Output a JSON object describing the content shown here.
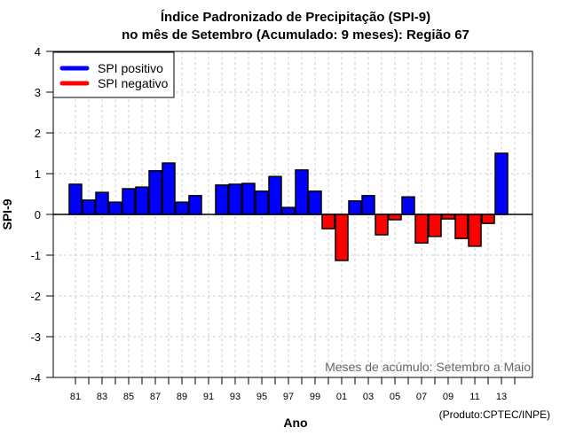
{
  "chart_data": {
    "type": "bar",
    "title_line1": "Índice Padronizado de Precipitação (SPI-9)",
    "title_line2": "no mês de Setembro (Acumulado: 9 meses): Região 67",
    "xlabel": "Ano",
    "ylabel": "SPI-9",
    "ylim": [
      -4,
      4
    ],
    "yticks": [
      "-4",
      "-3",
      "-2",
      "-1",
      "0",
      "1",
      "2",
      "3",
      "4"
    ],
    "xlim": [
      1980,
      2015
    ],
    "xtick_labels": [
      "81",
      "83",
      "85",
      "87",
      "89",
      "91",
      "93",
      "95",
      "97",
      "99",
      "01",
      "03",
      "05",
      "07",
      "09",
      "11",
      "13"
    ],
    "grid": true,
    "legend_position": "top-left",
    "legend": [
      {
        "label": "SPI positivo",
        "color": "#0000ff"
      },
      {
        "label": "SPI negativo",
        "color": "#ff0000"
      }
    ],
    "annotation": "Meses de acúmulo: Setembro a Maio",
    "credit": "(Produto:CPTEC/INPE)",
    "colors": {
      "positive": "#0000ff",
      "negative": "#ff0000",
      "grid": "#cccccc"
    },
    "years": [
      1981,
      1982,
      1983,
      1984,
      1985,
      1986,
      1987,
      1988,
      1989,
      1990,
      1992,
      1993,
      1994,
      1995,
      1996,
      1997,
      1998,
      1999,
      2000,
      2001,
      2002,
      2003,
      2004,
      2005,
      2006,
      2007,
      2008,
      2009,
      2010,
      2011,
      2012,
      2013
    ],
    "values": [
      0.74,
      0.35,
      0.54,
      0.3,
      0.63,
      0.67,
      1.07,
      1.26,
      0.3,
      0.46,
      0.72,
      0.74,
      0.76,
      0.57,
      0.93,
      0.17,
      1.09,
      0.57,
      -0.35,
      -1.13,
      0.33,
      0.46,
      -0.5,
      -0.13,
      0.43,
      -0.7,
      -0.54,
      -0.11,
      -0.59,
      -0.78,
      -0.22,
      1.5
    ]
  }
}
